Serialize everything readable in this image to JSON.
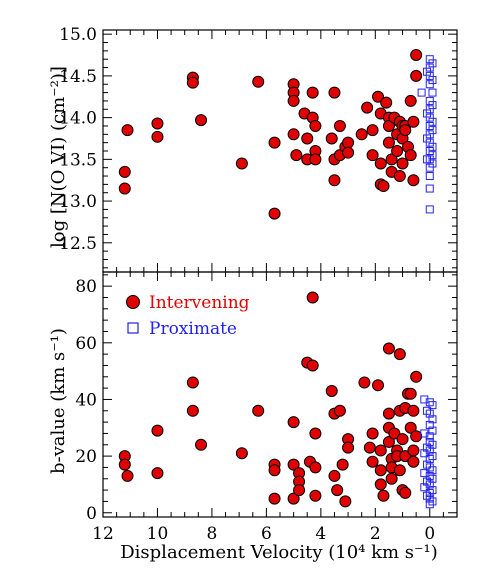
{
  "chart_data": [
    {
      "panel": "top",
      "type": "scatter",
      "title": "",
      "xlabel": "",
      "ylabel": "log [N(O VI) (cm⁻²)]",
      "xlim": [
        12,
        -1
      ],
      "ylim": [
        12.15,
        15.05
      ],
      "x_reversed": true,
      "y_ticks": [
        12.5,
        13.0,
        13.5,
        14.0,
        14.5,
        15.0
      ],
      "y_tick_labels": [
        "12.5",
        "13.0",
        "13.5",
        "14.0",
        "14.5",
        "15.0"
      ],
      "grid": false,
      "series": [
        {
          "key": "intervening",
          "marker": "filled-circle",
          "color": "#e00000",
          "points": [
            [
              11.1,
              13.85
            ],
            [
              11.2,
              13.35
            ],
            [
              11.2,
              13.15
            ],
            [
              10.0,
              13.93
            ],
            [
              10.0,
              13.77
            ],
            [
              8.7,
              14.48
            ],
            [
              8.7,
              14.42
            ],
            [
              8.4,
              13.97
            ],
            [
              6.9,
              13.45
            ],
            [
              6.3,
              14.43
            ],
            [
              5.7,
              13.7
            ],
            [
              5.7,
              12.85
            ],
            [
              5.0,
              14.4
            ],
            [
              5.0,
              14.3
            ],
            [
              5.0,
              14.2
            ],
            [
              5.0,
              13.8
            ],
            [
              4.9,
              13.55
            ],
            [
              4.6,
              14.05
            ],
            [
              4.5,
              13.75
            ],
            [
              4.5,
              13.5
            ],
            [
              4.3,
              14.3
            ],
            [
              4.3,
              14.0
            ],
            [
              4.2,
              13.9
            ],
            [
              4.2,
              13.6
            ],
            [
              4.2,
              13.5
            ],
            [
              3.6,
              13.75
            ],
            [
              3.5,
              13.5
            ],
            [
              3.5,
              13.25
            ],
            [
              3.5,
              14.3
            ],
            [
              3.3,
              13.9
            ],
            [
              3.3,
              13.55
            ],
            [
              3.1,
              13.65
            ],
            [
              3.0,
              13.7
            ],
            [
              3.0,
              13.58
            ],
            [
              2.5,
              13.8
            ],
            [
              2.3,
              14.12
            ],
            [
              2.1,
              13.85
            ],
            [
              2.1,
              13.55
            ],
            [
              1.9,
              14.25
            ],
            [
              1.8,
              14.05
            ],
            [
              1.8,
              13.45
            ],
            [
              1.8,
              13.2
            ],
            [
              1.7,
              13.18
            ],
            [
              1.6,
              14.18
            ],
            [
              1.5,
              14.0
            ],
            [
              1.5,
              13.9
            ],
            [
              1.5,
              13.7
            ],
            [
              1.4,
              13.5
            ],
            [
              1.4,
              13.35
            ],
            [
              1.3,
              14.0
            ],
            [
              1.2,
              13.8
            ],
            [
              1.2,
              13.6
            ],
            [
              1.1,
              13.95
            ],
            [
              1.1,
              13.3
            ],
            [
              1.0,
              13.9
            ],
            [
              1.0,
              13.75
            ],
            [
              1.0,
              13.45
            ],
            [
              0.9,
              13.9
            ],
            [
              0.9,
              13.85
            ],
            [
              0.8,
              13.65
            ],
            [
              0.7,
              14.2
            ],
            [
              0.7,
              13.55
            ],
            [
              0.6,
              13.95
            ],
            [
              0.6,
              13.25
            ],
            [
              0.5,
              14.75
            ],
            [
              0.5,
              14.5
            ]
          ]
        },
        {
          "key": "proximate",
          "marker": "open-square",
          "color": "#2222ee",
          "points": [
            [
              0.0,
              14.7
            ],
            [
              0.0,
              14.6
            ],
            [
              0.0,
              14.5
            ],
            [
              0.0,
              14.4
            ],
            [
              0.0,
              14.2
            ],
            [
              0.0,
              14.1
            ],
            [
              0.0,
              14.0
            ],
            [
              0.0,
              13.9
            ],
            [
              0.0,
              13.8
            ],
            [
              0.0,
              13.7
            ],
            [
              0.0,
              13.6
            ],
            [
              0.0,
              13.5
            ],
            [
              0.0,
              13.4
            ],
            [
              0.0,
              13.3
            ],
            [
              0.0,
              13.15
            ],
            [
              0.0,
              12.9
            ],
            [
              -0.1,
              14.65
            ],
            [
              -0.1,
              14.45
            ],
            [
              -0.1,
              14.3
            ],
            [
              -0.1,
              14.15
            ],
            [
              -0.1,
              13.95
            ],
            [
              -0.1,
              13.85
            ],
            [
              -0.1,
              13.65
            ],
            [
              -0.1,
              13.55
            ],
            [
              -0.1,
              13.45
            ],
            [
              0.1,
              14.55
            ],
            [
              0.1,
              14.05
            ],
            [
              0.1,
              13.75
            ],
            [
              0.1,
              13.5
            ],
            [
              0.3,
              14.3
            ]
          ]
        }
      ]
    },
    {
      "panel": "bottom",
      "type": "scatter",
      "title": "",
      "xlabel": "Displacement Velocity (10⁴ km s⁻¹)",
      "ylabel": "b-value (km s⁻¹)",
      "xlim": [
        12,
        -1
      ],
      "ylim": [
        -1.5,
        85
      ],
      "x_reversed": true,
      "x_ticks": [
        12,
        10,
        8,
        6,
        4,
        2,
        0
      ],
      "x_tick_labels": [
        "12",
        "10",
        "8",
        "6",
        "4",
        "2",
        "0"
      ],
      "y_ticks": [
        0,
        20,
        40,
        60,
        80
      ],
      "y_tick_labels": [
        "0",
        "20",
        "40",
        "60",
        "80"
      ],
      "grid": false,
      "legend": {
        "placement": "top-left",
        "entries": [
          {
            "key": "intervening",
            "label": "Intervening",
            "color": "#e00000",
            "marker": "filled-circle"
          },
          {
            "key": "proximate",
            "label": "Proximate",
            "color": "#2222ee",
            "marker": "open-square"
          }
        ]
      },
      "series": [
        {
          "key": "intervening",
          "marker": "filled-circle",
          "color": "#e00000",
          "points": [
            [
              11.2,
              20
            ],
            [
              11.2,
              17
            ],
            [
              11.1,
              13
            ],
            [
              10.0,
              29
            ],
            [
              10.0,
              14
            ],
            [
              8.7,
              46
            ],
            [
              8.7,
              36
            ],
            [
              8.4,
              24
            ],
            [
              6.9,
              21
            ],
            [
              6.3,
              36
            ],
            [
              5.7,
              17
            ],
            [
              5.7,
              15
            ],
            [
              5.7,
              5
            ],
            [
              5.0,
              32
            ],
            [
              5.0,
              17
            ],
            [
              5.0,
              5
            ],
            [
              4.8,
              14
            ],
            [
              4.8,
              11
            ],
            [
              4.8,
              8
            ],
            [
              4.5,
              53
            ],
            [
              4.4,
              18
            ],
            [
              4.3,
              76
            ],
            [
              4.3,
              52
            ],
            [
              4.2,
              28
            ],
            [
              4.2,
              16
            ],
            [
              4.2,
              6
            ],
            [
              3.6,
              43
            ],
            [
              3.5,
              35
            ],
            [
              3.5,
              13
            ],
            [
              3.4,
              8
            ],
            [
              3.3,
              36
            ],
            [
              3.2,
              17
            ],
            [
              3.1,
              4
            ],
            [
              3.0,
              26
            ],
            [
              3.0,
              23
            ],
            [
              2.4,
              46
            ],
            [
              2.2,
              23
            ],
            [
              2.1,
              18
            ],
            [
              2.1,
              28
            ],
            [
              1.9,
              45
            ],
            [
              1.8,
              22
            ],
            [
              1.8,
              15
            ],
            [
              1.8,
              10
            ],
            [
              1.7,
              6
            ],
            [
              1.5,
              58
            ],
            [
              1.5,
              35
            ],
            [
              1.5,
              30
            ],
            [
              1.5,
              25
            ],
            [
              1.4,
              19
            ],
            [
              1.4,
              16
            ],
            [
              1.4,
              12
            ],
            [
              1.3,
              28
            ],
            [
              1.2,
              22
            ],
            [
              1.2,
              20
            ],
            [
              1.1,
              56
            ],
            [
              1.1,
              36
            ],
            [
              1.1,
              15
            ],
            [
              1.0,
              8
            ],
            [
              1.0,
              26
            ],
            [
              0.9,
              37
            ],
            [
              0.9,
              20
            ],
            [
              0.9,
              7
            ],
            [
              0.8,
              42
            ],
            [
              0.7,
              42
            ],
            [
              0.7,
              30
            ],
            [
              0.6,
              36
            ],
            [
              0.6,
              22
            ],
            [
              0.6,
              18
            ],
            [
              0.5,
              48
            ],
            [
              0.5,
              27
            ]
          ]
        },
        {
          "key": "proximate",
          "marker": "open-square",
          "color": "#2222ee",
          "points": [
            [
              0.0,
              39
            ],
            [
              0.0,
              35
            ],
            [
              0.0,
              31
            ],
            [
              0.0,
              27
            ],
            [
              0.0,
              25
            ],
            [
              0.0,
              22
            ],
            [
              0.0,
              19
            ],
            [
              0.0,
              16
            ],
            [
              0.0,
              13
            ],
            [
              0.0,
              10
            ],
            [
              0.0,
              7
            ],
            [
              0.0,
              5
            ],
            [
              0.0,
              3
            ],
            [
              -0.1,
              38
            ],
            [
              -0.1,
              33
            ],
            [
              -0.1,
              29
            ],
            [
              -0.1,
              24
            ],
            [
              -0.1,
              20
            ],
            [
              -0.1,
              15
            ],
            [
              -0.1,
              12
            ],
            [
              -0.1,
              8
            ],
            [
              -0.1,
              4
            ],
            [
              0.1,
              36
            ],
            [
              0.1,
              23
            ],
            [
              0.1,
              17
            ],
            [
              0.1,
              11
            ],
            [
              0.1,
              6
            ],
            [
              0.2,
              40
            ],
            [
              0.2,
              28
            ],
            [
              0.2,
              21
            ],
            [
              0.2,
              14
            ],
            [
              0.2,
              9
            ]
          ]
        }
      ]
    }
  ]
}
